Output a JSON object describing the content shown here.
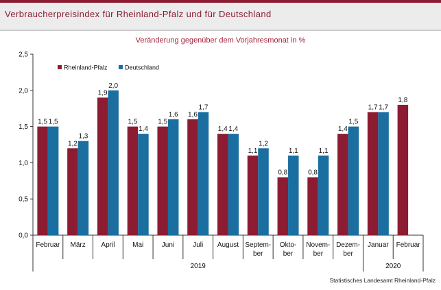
{
  "title": "Verbraucherpreisindex für Rheinland-Pfalz und für Deutschland",
  "subtitle": "Veränderung gegenüber dem Vorjahresmonat in %",
  "source": "Statistisches Landesamt Rheinland-Pfalz",
  "colors": {
    "rheinland_pfalz": "#8c1c32",
    "deutschland": "#1a6fa0",
    "title": "#8c1c32"
  },
  "chart_data": {
    "type": "bar",
    "ylim": [
      0,
      2.5
    ],
    "yticks": [
      "0,0",
      "0,5",
      "1,0",
      "1,5",
      "2,0",
      "2,5"
    ],
    "ytick_values": [
      0,
      0.5,
      1.0,
      1.5,
      2.0,
      2.5
    ],
    "grid": false,
    "legend": "top-left",
    "categories": [
      [
        "Februar"
      ],
      [
        "März"
      ],
      [
        "April"
      ],
      [
        "Mai"
      ],
      [
        "Juni"
      ],
      [
        "Juli"
      ],
      [
        "August"
      ],
      [
        "Septem-",
        "ber"
      ],
      [
        "Okto-",
        "ber"
      ],
      [
        "Novem-",
        "ber"
      ],
      [
        "Dezem-",
        "ber"
      ],
      [
        "Januar"
      ],
      [
        "Februar"
      ]
    ],
    "year_groups": [
      {
        "label": "2019",
        "start": 0,
        "end": 10
      },
      {
        "label": "2020",
        "start": 11,
        "end": 12
      }
    ],
    "series": [
      {
        "name": "Rheinland-Pfalz",
        "color": "#8c1c32",
        "values": [
          1.5,
          1.2,
          1.9,
          1.5,
          1.5,
          1.6,
          1.4,
          1.1,
          0.8,
          0.8,
          1.4,
          1.7,
          1.8
        ],
        "labels": [
          "1,5",
          "1,2",
          "1,9",
          "1,5",
          "1,5",
          "1,6",
          "1,4",
          "1,1",
          "0,8",
          "0,8",
          "1,4",
          "1,7",
          "1,8"
        ]
      },
      {
        "name": "Deutschland",
        "color": "#1a6fa0",
        "values": [
          1.5,
          1.3,
          2.0,
          1.4,
          1.6,
          1.7,
          1.4,
          1.2,
          1.1,
          1.1,
          1.5,
          1.7,
          null
        ],
        "labels": [
          "1,5",
          "1,3",
          "2,0",
          "1,4",
          "1,6",
          "1,7",
          "1,4",
          "1,2",
          "1,1",
          "1,1",
          "1,5",
          "1,7",
          ""
        ]
      }
    ]
  }
}
